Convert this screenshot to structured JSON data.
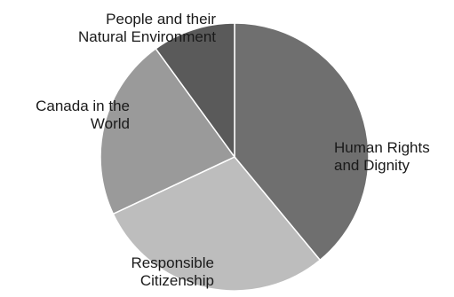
{
  "chart_data": {
    "type": "pie",
    "title": "",
    "slices": [
      {
        "label": "Human Rights\nand Dignity",
        "value": 39,
        "color": "#6f6f6f"
      },
      {
        "label": "Responsible\nCitizenship",
        "value": 29,
        "color": "#bdbdbd"
      },
      {
        "label": "Canada in the\nWorld",
        "value": 22,
        "color": "#9a9a9a"
      },
      {
        "label": "People and their\nNatural Environment",
        "value": 10,
        "color": "#5a5a5a"
      }
    ],
    "start": "top",
    "direction": "clockwise",
    "legend": "none"
  }
}
